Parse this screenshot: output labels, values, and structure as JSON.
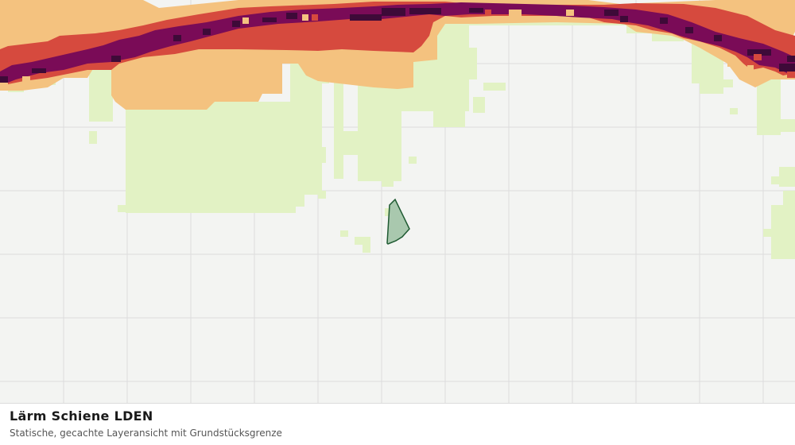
{
  "map": {
    "layer": "noise-raster",
    "colors": {
      "background": "#f3f4f2",
      "grid": "#dcdcdc",
      "low": "#e2f2c4",
      "mid": "#f4c27f",
      "high": "#d64a3e",
      "very_high": "#7a0b57",
      "extreme": "#3e0a38",
      "parcel_fill": "#a9c8ae",
      "parcel_stroke": "#1f5a32"
    }
  },
  "caption": {
    "title": "Lärm Schiene LDEN",
    "subtitle": "Statische, gecachte Layeransicht mit Grundstücksgrenze"
  }
}
